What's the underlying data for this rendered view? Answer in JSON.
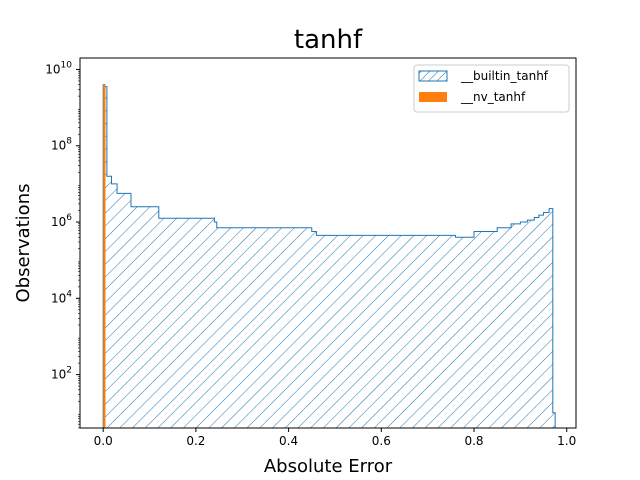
{
  "chart_data": {
    "type": "histogram",
    "title": "tanhf",
    "xlabel": "Absolute Error",
    "ylabel": "Observations",
    "xlim": [
      -0.05,
      1.02
    ],
    "ylim_log10": [
      0.6,
      10.3
    ],
    "y_scale": "log",
    "x_ticks": [
      {
        "value": 0.0,
        "label": "0.0"
      },
      {
        "value": 0.2,
        "label": "0.2"
      },
      {
        "value": 0.4,
        "label": "0.4"
      },
      {
        "value": 0.6,
        "label": "0.6"
      },
      {
        "value": 0.8,
        "label": "0.8"
      },
      {
        "value": 1.0,
        "label": "1.0"
      }
    ],
    "y_ticks": [
      {
        "exp": 2,
        "base": "10",
        "sup": "2"
      },
      {
        "exp": 4,
        "base": "10",
        "sup": "4"
      },
      {
        "exp": 6,
        "base": "10",
        "sup": "6"
      },
      {
        "exp": 8,
        "base": "10",
        "sup": "8"
      },
      {
        "exp": 10,
        "base": "10",
        "sup": "10"
      }
    ],
    "legend_position": "top-right",
    "series": [
      {
        "name": "__builtin_tanhf",
        "style": "step-hatched",
        "color": "#1f77b4",
        "steps": [
          {
            "x0": 0.0,
            "x1": 0.004,
            "log10_count": 9.6
          },
          {
            "x0": 0.004,
            "x1": 0.008,
            "log10_count": 9.55
          },
          {
            "x0": 0.008,
            "x1": 0.018,
            "log10_count": 7.2
          },
          {
            "x0": 0.018,
            "x1": 0.03,
            "log10_count": 7.0
          },
          {
            "x0": 0.03,
            "x1": 0.06,
            "log10_count": 6.75
          },
          {
            "x0": 0.06,
            "x1": 0.12,
            "log10_count": 6.4
          },
          {
            "x0": 0.12,
            "x1": 0.24,
            "log10_count": 6.1
          },
          {
            "x0": 0.24,
            "x1": 0.245,
            "log10_count": 6.0
          },
          {
            "x0": 0.245,
            "x1": 0.45,
            "log10_count": 5.85
          },
          {
            "x0": 0.45,
            "x1": 0.46,
            "log10_count": 5.75
          },
          {
            "x0": 0.46,
            "x1": 0.76,
            "log10_count": 5.65
          },
          {
            "x0": 0.76,
            "x1": 0.8,
            "log10_count": 5.6
          },
          {
            "x0": 0.8,
            "x1": 0.85,
            "log10_count": 5.75
          },
          {
            "x0": 0.85,
            "x1": 0.88,
            "log10_count": 5.85
          },
          {
            "x0": 0.88,
            "x1": 0.9,
            "log10_count": 5.95
          },
          {
            "x0": 0.9,
            "x1": 0.915,
            "log10_count": 6.0
          },
          {
            "x0": 0.915,
            "x1": 0.93,
            "log10_count": 6.05
          },
          {
            "x0": 0.93,
            "x1": 0.94,
            "log10_count": 6.12
          },
          {
            "x0": 0.94,
            "x1": 0.95,
            "log10_count": 6.18
          },
          {
            "x0": 0.95,
            "x1": 0.962,
            "log10_count": 6.25
          },
          {
            "x0": 0.962,
            "x1": 0.97,
            "log10_count": 6.35
          },
          {
            "x0": 0.97,
            "x1": 0.975,
            "log10_count": 1.0
          }
        ]
      },
      {
        "name": "__nv_tanhf",
        "style": "filled",
        "color": "#ff7f0e",
        "steps": [
          {
            "x0": 0.0,
            "x1": 0.005,
            "log10_count": 9.6
          }
        ]
      }
    ]
  }
}
